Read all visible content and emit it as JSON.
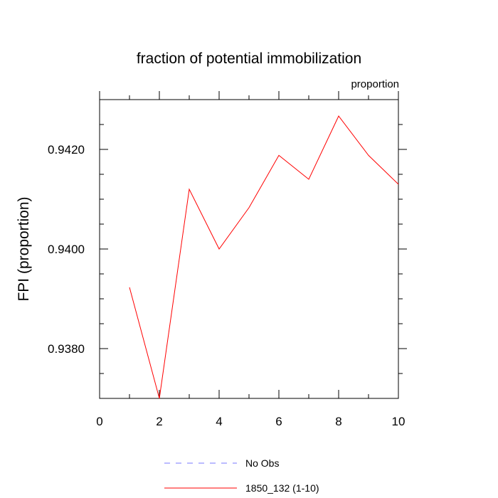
{
  "chart_data": {
    "type": "line",
    "title": "fraction of potential immobilization",
    "units_label": "proportion",
    "ylabel": "FPI  (proportion)",
    "xlabel": "",
    "xlim": [
      0,
      10
    ],
    "ylim": [
      0.937,
      0.943
    ],
    "x_ticks": [
      0,
      2,
      4,
      6,
      8,
      10
    ],
    "x_tick_labels": [
      "0",
      "2",
      "4",
      "6",
      "8",
      "10"
    ],
    "y_ticks": [
      0.938,
      0.94,
      0.942
    ],
    "y_tick_labels": [
      "0.9380",
      "0.9400",
      "0.9420"
    ],
    "grid": false,
    "legend_position": "bottom",
    "series": [
      {
        "name": "1850_132 (1-10)",
        "color": "#ff0000",
        "dash": "solid",
        "x": [
          1,
          2,
          3,
          4,
          5,
          6,
          7,
          8,
          9,
          10
        ],
        "y": [
          0.93923,
          0.937,
          0.9412,
          0.94,
          0.94083,
          0.94188,
          0.9414,
          0.94267,
          0.94188,
          0.9413
        ]
      }
    ],
    "legend": [
      {
        "label": "No Obs",
        "color": "#7777ff",
        "dash": "dashed"
      },
      {
        "label": "1850_132 (1-10)",
        "color": "#ff0000",
        "dash": "solid"
      }
    ]
  }
}
